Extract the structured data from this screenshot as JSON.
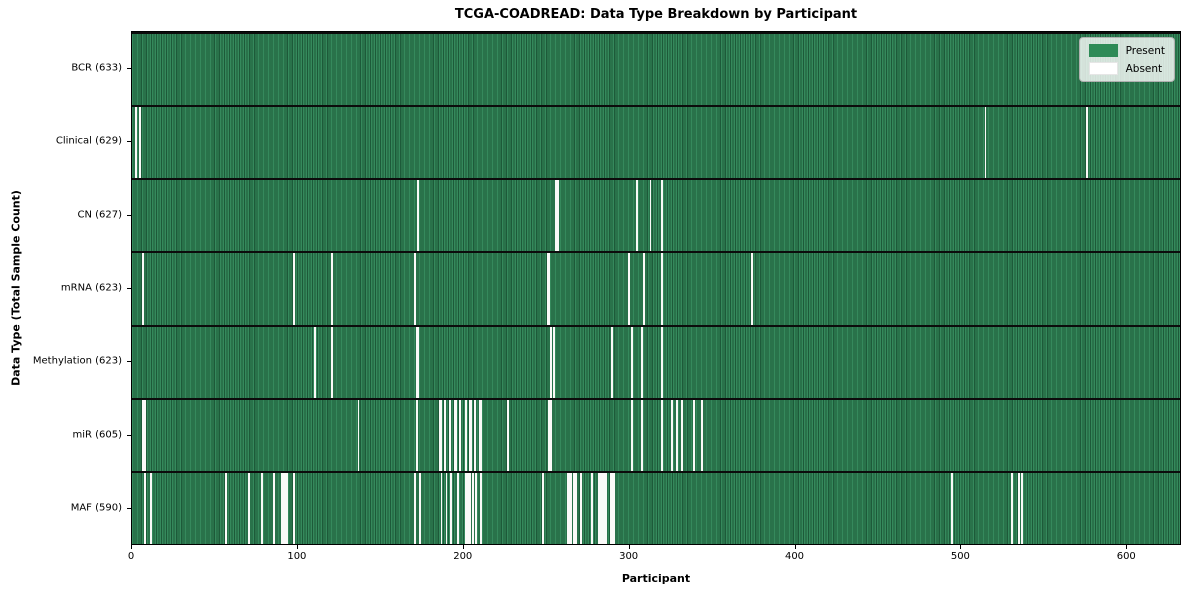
{
  "title": "TCGA-COADREAD: Data Type Breakdown by Participant",
  "chart_data": {
    "type": "heatmap",
    "title": "TCGA-COADREAD: Data Type Breakdown by Participant",
    "xlabel": "Participant",
    "ylabel": "Data Type (Total Sample Count)",
    "x_range": [
      0,
      633
    ],
    "x_ticks": [
      0,
      100,
      200,
      300,
      400,
      500,
      600
    ],
    "total_participants": 633,
    "grid": false,
    "legend_position": "upper right",
    "legend": [
      {
        "label": "Present",
        "color": "#2e8b57"
      },
      {
        "label": "Absent",
        "color": "#ffffff"
      }
    ],
    "colors": {
      "present": "#2e8b57",
      "present_edge": "#1d5a39",
      "absent": "#fafaf8"
    },
    "rows": [
      {
        "data_type": "BCR",
        "label": "BCR (633)",
        "present_count": 633,
        "absent_participants": []
      },
      {
        "data_type": "Clinical",
        "label": "Clinical (629)",
        "present_count": 629,
        "absent_participants": [
          2,
          4,
          514,
          575
        ]
      },
      {
        "data_type": "CN",
        "label": "CN (627)",
        "present_count": 627,
        "absent_participants": [
          172,
          255,
          256,
          304,
          312,
          319
        ]
      },
      {
        "data_type": "mRNA",
        "label": "mRNA (623)",
        "present_count": 623,
        "absent_participants": [
          6,
          97,
          120,
          170,
          250,
          251,
          299,
          308,
          319,
          373
        ]
      },
      {
        "data_type": "Methylation",
        "label": "Methylation (623)",
        "present_count": 623,
        "absent_participants": [
          110,
          120,
          171,
          172,
          252,
          254,
          289,
          301,
          307,
          319
        ]
      },
      {
        "data_type": "miR",
        "label": "miR (605)",
        "present_count": 605,
        "absent_participants": [
          6,
          7,
          136,
          171,
          185,
          186,
          188,
          191,
          194,
          195,
          197,
          201,
          203,
          204,
          206,
          209,
          210,
          226,
          251,
          252,
          301,
          307,
          319,
          325,
          328,
          331,
          338,
          343
        ]
      },
      {
        "data_type": "MAF",
        "label": "MAF (590)",
        "present_count": 590,
        "absent_participants": [
          7,
          11,
          56,
          70,
          78,
          85,
          90,
          91,
          92,
          93,
          97,
          170,
          173,
          186,
          189,
          192,
          196,
          201,
          202,
          203,
          205,
          207,
          210,
          247,
          262,
          263,
          264,
          266,
          267,
          270,
          277,
          281,
          282,
          283,
          284,
          285,
          288,
          289,
          290,
          494,
          530,
          534,
          536
        ]
      }
    ]
  }
}
